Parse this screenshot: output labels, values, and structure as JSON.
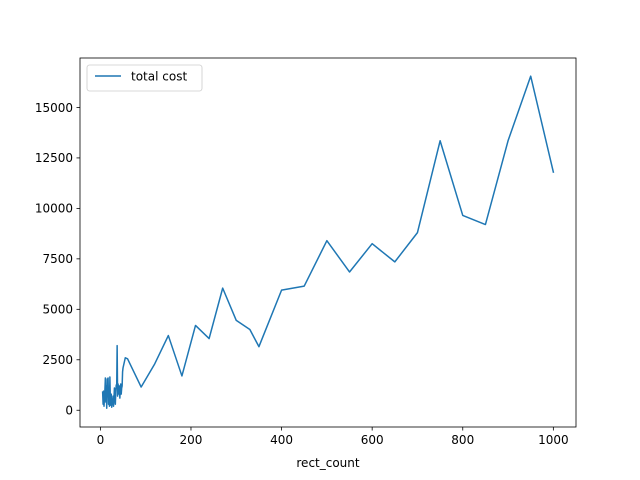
{
  "chart_data": {
    "type": "line",
    "title": "",
    "xlabel": "rect_count",
    "ylabel": "",
    "xlim": [
      -45,
      1050
    ],
    "ylim": [
      -830,
      17450
    ],
    "xticks": [
      0,
      200,
      400,
      600,
      800,
      1000
    ],
    "xtick_labels": [
      "0",
      "200",
      "400",
      "600",
      "800",
      "1000"
    ],
    "yticks": [
      0,
      2500,
      5000,
      7500,
      10000,
      12500,
      15000
    ],
    "ytick_labels": [
      "0",
      "2500",
      "5000",
      "7500",
      "10000",
      "12500",
      "15000"
    ],
    "grid": false,
    "legend": {
      "position": "top-left"
    },
    "series": [
      {
        "name": "total cost",
        "color": "#1f77b4",
        "x": [
          5,
          6,
          7,
          8,
          9,
          10,
          11,
          12,
          13,
          14,
          15,
          16,
          17,
          18,
          19,
          20,
          21,
          22,
          23,
          24,
          25,
          26,
          27,
          28,
          29,
          30,
          31,
          32,
          33,
          34,
          35,
          36,
          37,
          38,
          39,
          40,
          41,
          42,
          43,
          44,
          45,
          46,
          47,
          48,
          49,
          50,
          55,
          60,
          90,
          120,
          150,
          180,
          210,
          240,
          270,
          300,
          330,
          350,
          400,
          450,
          500,
          550,
          600,
          650,
          700,
          750,
          800,
          850,
          900,
          950,
          1000
        ],
        "y": [
          900,
          300,
          950,
          200,
          600,
          1000,
          1600,
          400,
          1200,
          100,
          1550,
          700,
          1600,
          300,
          900,
          200,
          1650,
          500,
          250,
          800,
          150,
          400,
          300,
          700,
          200,
          600,
          1100,
          1000,
          300,
          900,
          1250,
          1100,
          3200,
          700,
          1300,
          1100,
          800,
          1200,
          600,
          1100,
          1300,
          800,
          1100,
          1200,
          1900,
          2100,
          2600,
          2550,
          1150,
          2300,
          3700,
          1700,
          4200,
          3550,
          6050,
          4450,
          4000,
          3150,
          5950,
          6150,
          8400,
          6850,
          8250,
          7350,
          8800,
          13350,
          9650,
          9200,
          13350,
          16550,
          11800
        ]
      }
    ]
  }
}
